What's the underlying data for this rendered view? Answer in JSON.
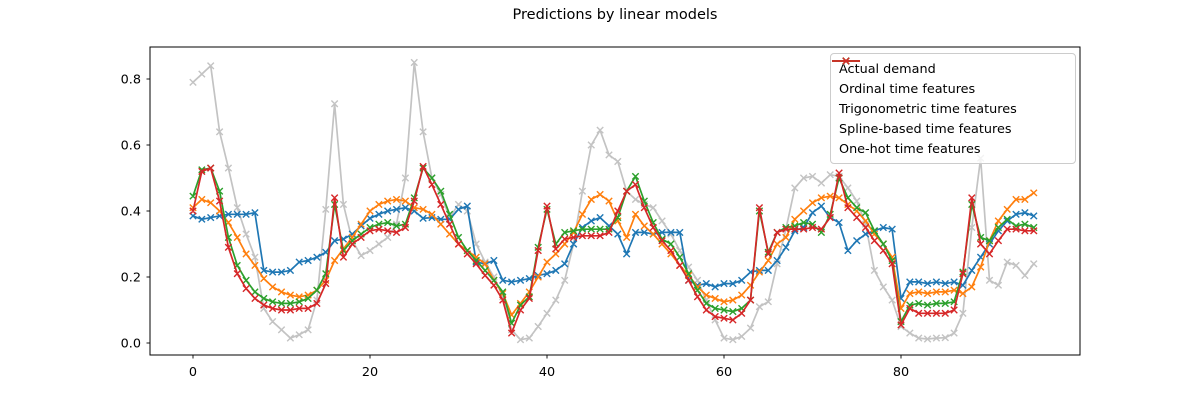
{
  "chart_data": {
    "type": "line",
    "title": "Predictions by linear models",
    "marker": "x",
    "x_start": 0,
    "x_step": 1,
    "n_points": 96,
    "x_ticks": [
      0,
      20,
      40,
      60,
      80
    ],
    "y_ticks": [
      "0.0",
      "0.2",
      "0.4",
      "0.6",
      "0.8"
    ],
    "y_tick_values": [
      0.0,
      0.2,
      0.4,
      0.6,
      0.8
    ],
    "xlabel": "",
    "ylabel": "",
    "xlim": [
      -4.86,
      100.25
    ],
    "ylim": [
      -0.036,
      0.897
    ],
    "grid": false,
    "legend_position": "upper right",
    "series": [
      {
        "name": "Actual demand",
        "color": "#c3c3c3",
        "values": [
          0.79,
          0.815,
          0.84,
          0.64,
          0.53,
          0.41,
          0.33,
          0.26,
          0.105,
          0.065,
          0.04,
          0.015,
          0.025,
          0.04,
          0.13,
          0.405,
          0.725,
          0.42,
          0.31,
          0.265,
          0.28,
          0.3,
          0.32,
          0.36,
          0.5,
          0.85,
          0.64,
          0.5,
          0.45,
          0.38,
          0.42,
          0.4,
          0.3,
          0.245,
          0.2,
          0.14,
          0.04,
          0.01,
          0.015,
          0.05,
          0.09,
          0.13,
          0.19,
          0.3,
          0.46,
          0.6,
          0.645,
          0.57,
          0.55,
          0.46,
          0.435,
          0.42,
          0.41,
          0.37,
          0.33,
          0.28,
          0.23,
          0.19,
          0.13,
          0.07,
          0.015,
          0.01,
          0.02,
          0.045,
          0.11,
          0.125,
          0.24,
          0.345,
          0.47,
          0.5,
          0.505,
          0.485,
          0.51,
          0.505,
          0.47,
          0.43,
          0.36,
          0.22,
          0.17,
          0.13,
          0.05,
          0.03,
          0.015,
          0.012,
          0.015,
          0.016,
          0.03,
          0.09,
          0.35,
          0.56,
          0.19,
          0.175,
          0.245,
          0.235,
          0.205,
          0.24
        ]
      },
      {
        "name": "Ordinal time features",
        "color": "#1f77b4",
        "values": [
          0.385,
          0.375,
          0.38,
          0.385,
          0.39,
          0.39,
          0.39,
          0.395,
          0.22,
          0.215,
          0.215,
          0.22,
          0.245,
          0.25,
          0.26,
          0.275,
          0.31,
          0.315,
          0.33,
          0.355,
          0.378,
          0.39,
          0.4,
          0.405,
          0.41,
          0.4,
          0.378,
          0.38,
          0.375,
          0.375,
          0.405,
          0.415,
          0.245,
          0.24,
          0.25,
          0.19,
          0.185,
          0.19,
          0.195,
          0.205,
          0.21,
          0.22,
          0.24,
          0.3,
          0.35,
          0.37,
          0.38,
          0.355,
          0.33,
          0.27,
          0.335,
          0.335,
          0.33,
          0.335,
          0.335,
          0.335,
          0.19,
          0.175,
          0.18,
          0.17,
          0.18,
          0.18,
          0.19,
          0.215,
          0.22,
          0.22,
          0.25,
          0.29,
          0.34,
          0.35,
          0.395,
          0.415,
          0.38,
          0.365,
          0.28,
          0.31,
          0.33,
          0.34,
          0.35,
          0.345,
          0.135,
          0.185,
          0.185,
          0.18,
          0.185,
          0.18,
          0.185,
          0.175,
          0.22,
          0.26,
          0.3,
          0.34,
          0.37,
          0.39,
          0.395,
          0.385
        ]
      },
      {
        "name": "Trigonometric time features",
        "color": "#ff7f0e",
        "values": [
          0.41,
          0.435,
          0.425,
          0.4,
          0.365,
          0.32,
          0.27,
          0.235,
          0.195,
          0.17,
          0.155,
          0.145,
          0.14,
          0.145,
          0.16,
          0.19,
          0.25,
          0.285,
          0.32,
          0.36,
          0.4,
          0.42,
          0.43,
          0.435,
          0.43,
          0.41,
          0.405,
          0.39,
          0.36,
          0.33,
          0.3,
          0.28,
          0.26,
          0.24,
          0.19,
          0.15,
          0.085,
          0.12,
          0.155,
          0.2,
          0.245,
          0.27,
          0.3,
          0.335,
          0.39,
          0.435,
          0.45,
          0.43,
          0.37,
          0.32,
          0.39,
          0.355,
          0.33,
          0.3,
          0.27,
          0.235,
          0.205,
          0.17,
          0.145,
          0.135,
          0.125,
          0.13,
          0.145,
          0.175,
          0.215,
          0.25,
          0.3,
          0.32,
          0.375,
          0.4,
          0.425,
          0.44,
          0.445,
          0.44,
          0.42,
          0.4,
          0.37,
          0.33,
          0.3,
          0.26,
          0.105,
          0.15,
          0.155,
          0.15,
          0.155,
          0.155,
          0.16,
          0.15,
          0.17,
          0.23,
          0.31,
          0.37,
          0.405,
          0.435,
          0.435,
          0.455
        ]
      },
      {
        "name": "Spline-based time features",
        "color": "#2ca02c",
        "values": [
          0.445,
          0.525,
          0.53,
          0.46,
          0.32,
          0.235,
          0.19,
          0.155,
          0.135,
          0.125,
          0.12,
          0.12,
          0.125,
          0.135,
          0.16,
          0.21,
          0.42,
          0.28,
          0.31,
          0.33,
          0.35,
          0.36,
          0.365,
          0.355,
          0.36,
          0.44,
          0.53,
          0.5,
          0.46,
          0.39,
          0.32,
          0.28,
          0.25,
          0.22,
          0.19,
          0.155,
          0.06,
          0.115,
          0.14,
          0.29,
          0.405,
          0.3,
          0.335,
          0.34,
          0.345,
          0.345,
          0.345,
          0.345,
          0.38,
          0.46,
          0.505,
          0.43,
          0.365,
          0.315,
          0.3,
          0.26,
          0.21,
          0.16,
          0.12,
          0.105,
          0.1,
          0.095,
          0.105,
          0.13,
          0.4,
          0.275,
          0.335,
          0.35,
          0.355,
          0.365,
          0.36,
          0.335,
          0.39,
          0.5,
          0.44,
          0.41,
          0.395,
          0.34,
          0.3,
          0.25,
          0.065,
          0.115,
          0.12,
          0.115,
          0.12,
          0.12,
          0.125,
          0.215,
          0.42,
          0.32,
          0.31,
          0.35,
          0.375,
          0.355,
          0.36,
          0.35
        ]
      },
      {
        "name": "One-hot time features",
        "color": "#d62728",
        "values": [
          0.4,
          0.52,
          0.53,
          0.43,
          0.29,
          0.21,
          0.165,
          0.135,
          0.115,
          0.105,
          0.1,
          0.1,
          0.105,
          0.105,
          0.12,
          0.18,
          0.44,
          0.26,
          0.3,
          0.32,
          0.34,
          0.345,
          0.34,
          0.335,
          0.35,
          0.43,
          0.535,
          0.48,
          0.42,
          0.36,
          0.3,
          0.27,
          0.24,
          0.205,
          0.175,
          0.13,
          0.03,
          0.1,
          0.135,
          0.28,
          0.415,
          0.285,
          0.315,
          0.32,
          0.325,
          0.325,
          0.325,
          0.335,
          0.4,
          0.46,
          0.48,
          0.41,
          0.35,
          0.31,
          0.28,
          0.235,
          0.19,
          0.14,
          0.1,
          0.08,
          0.075,
          0.07,
          0.09,
          0.13,
          0.41,
          0.27,
          0.335,
          0.345,
          0.345,
          0.345,
          0.35,
          0.345,
          0.38,
          0.515,
          0.41,
          0.38,
          0.35,
          0.31,
          0.28,
          0.24,
          0.055,
          0.105,
          0.09,
          0.09,
          0.09,
          0.09,
          0.1,
          0.21,
          0.44,
          0.3,
          0.27,
          0.31,
          0.345,
          0.345,
          0.34,
          0.34
        ]
      }
    ]
  }
}
